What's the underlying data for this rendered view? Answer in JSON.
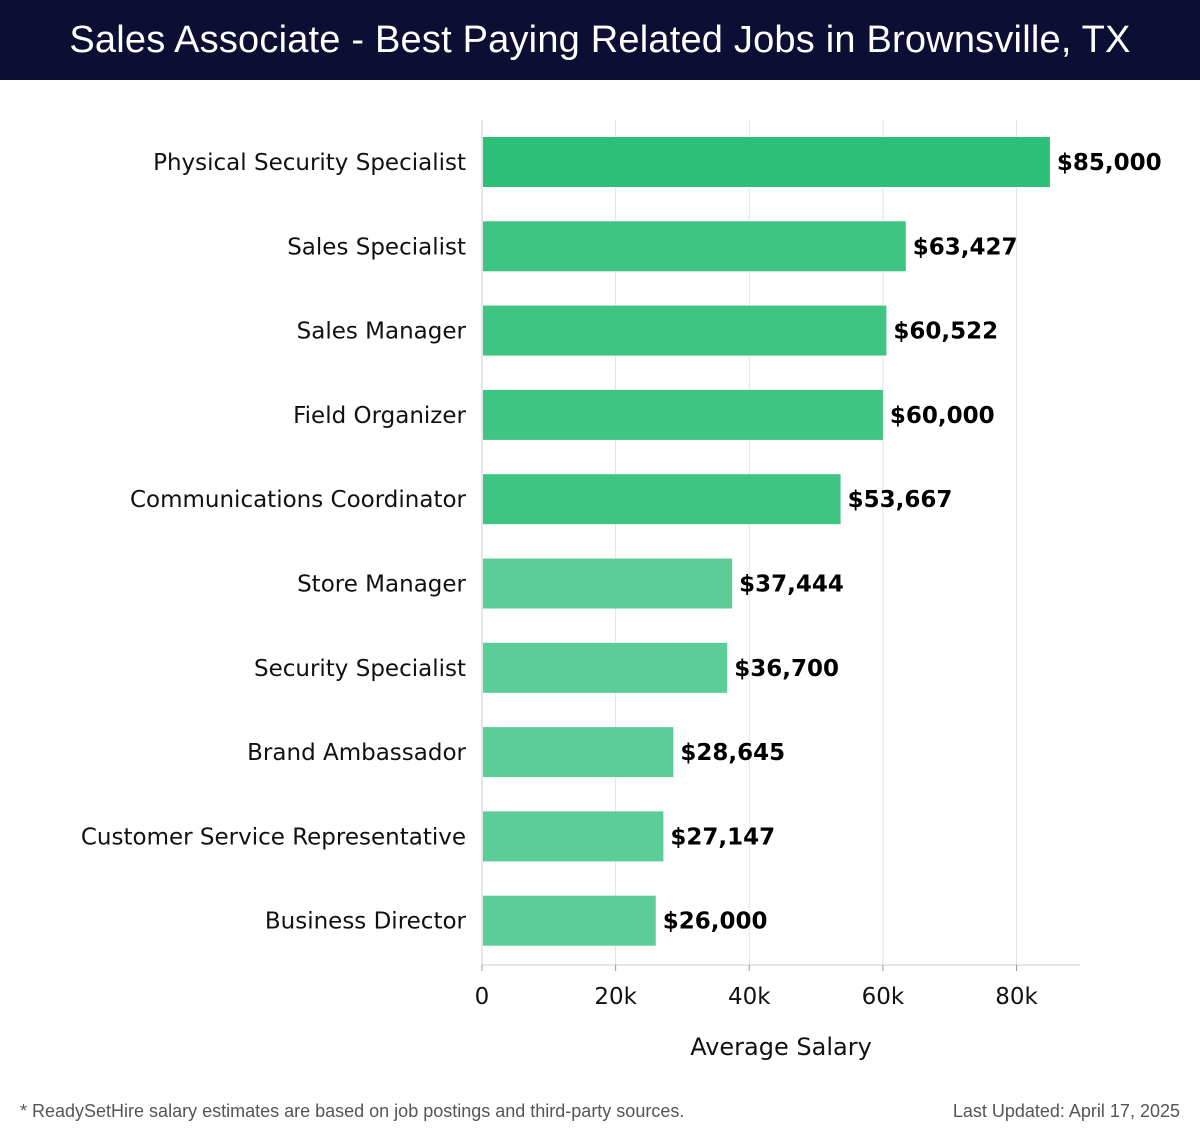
{
  "header": {
    "title": "Sales Associate - Best Paying Related Jobs in Brownsville, TX"
  },
  "chart_data": {
    "type": "bar",
    "orientation": "horizontal",
    "categories": [
      "Physical Security Specialist",
      "Sales Specialist",
      "Sales Manager",
      "Field Organizer",
      "Communications Coordinator",
      "Store Manager",
      "Security Specialist",
      "Brand Ambassador",
      "Customer Service Representative",
      "Business Director"
    ],
    "values": [
      85000,
      63427,
      60522,
      60000,
      53667,
      37444,
      36700,
      28645,
      27147,
      26000
    ],
    "value_labels": [
      "$85,000",
      "$63,427",
      "$60,522",
      "$60,000",
      "$53,667",
      "$37,444",
      "$36,700",
      "$28,645",
      "$27,147",
      "$26,000"
    ],
    "xlabel": "Average Salary",
    "ylabel": "",
    "xlim": [
      0,
      89500
    ],
    "xticks": [
      0,
      20000,
      40000,
      60000,
      80000
    ],
    "xtick_labels": [
      "0",
      "20k",
      "40k",
      "60k",
      "80k"
    ],
    "grid": true,
    "colors": {
      "bar_dark": "#2bbf78",
      "bar_light": "#5ccc98",
      "grid": "#e3e3e3",
      "axis": "#cccccc",
      "text": "#111111"
    }
  },
  "footer": {
    "note": "* ReadySetHire salary estimates are based on job postings and third-party sources.",
    "updated": "Last Updated: April 17, 2025"
  }
}
